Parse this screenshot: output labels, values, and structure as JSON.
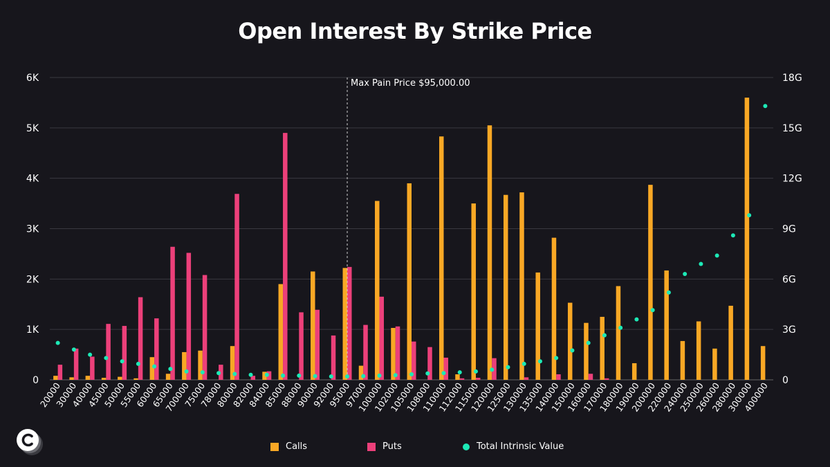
{
  "chart_data": {
    "type": "bar",
    "title": "Open Interest By Strike Price",
    "categories": [
      "20000",
      "30000",
      "40000",
      "45000",
      "50000",
      "55000",
      "60000",
      "65000",
      "700000",
      "75000",
      "78000",
      "80000",
      "82000",
      "84000",
      "85000",
      "88000",
      "90000",
      "92000",
      "95000",
      "97000",
      "100000",
      "102000",
      "105000",
      "108000",
      "110000",
      "112000",
      "115000",
      "120000",
      "125000",
      "130000",
      "135000",
      "140000",
      "150000",
      "160000",
      "170000",
      "180000",
      "190000",
      "200000",
      "220000",
      "240000",
      "250000",
      "260000",
      "280000",
      "300000",
      "400000"
    ],
    "series": [
      {
        "name": "Calls",
        "axis": "left",
        "color": "#f9a825",
        "values": [
          80,
          50,
          80,
          40,
          60,
          30,
          450,
          120,
          550,
          580,
          0,
          670,
          0,
          160,
          1900,
          0,
          2150,
          0,
          2220,
          280,
          3550,
          1030,
          3900,
          0,
          4830,
          110,
          3500,
          5050,
          3670,
          3720,
          2130,
          2820,
          1530,
          1130,
          1250,
          1860,
          330,
          3870,
          2170,
          770,
          1160,
          620,
          1470,
          5600,
          670
        ]
      },
      {
        "name": "Puts",
        "axis": "left",
        "color": "#ec407a",
        "values": [
          300,
          620,
          460,
          1110,
          1070,
          1640,
          1220,
          2640,
          2520,
          2080,
          300,
          3690,
          80,
          170,
          4900,
          1340,
          1390,
          880,
          2240,
          1090,
          1650,
          1060,
          760,
          650,
          440,
          30,
          40,
          430,
          0,
          50,
          0,
          110,
          0,
          120,
          30,
          0,
          0,
          0,
          0,
          0,
          0,
          0,
          0,
          0,
          0
        ]
      },
      {
        "name": "Total Intrinsic Value",
        "axis": "right",
        "color": "#1de9b6",
        "values": [
          2.2,
          1.8,
          1.5,
          1.3,
          1.1,
          0.95,
          0.8,
          0.65,
          0.5,
          0.45,
          0.4,
          0.35,
          0.3,
          0.3,
          0.25,
          0.25,
          0.22,
          0.2,
          0.2,
          0.22,
          0.25,
          0.28,
          0.33,
          0.38,
          0.4,
          0.45,
          0.5,
          0.6,
          0.75,
          0.95,
          1.1,
          1.3,
          1.75,
          2.2,
          2.65,
          3.1,
          3.6,
          4.15,
          5.2,
          6.3,
          6.9,
          7.4,
          8.6,
          9.8,
          16.3
        ]
      }
    ],
    "y_left": {
      "min": 0,
      "max": 6000,
      "ticks": [
        0,
        1000,
        2000,
        3000,
        4000,
        5000,
        6000
      ],
      "tick_labels": [
        "0",
        "1K",
        "2K",
        "3K",
        "4K",
        "5K",
        "6K"
      ]
    },
    "y_right": {
      "min": 0,
      "max": 18,
      "ticks": [
        0,
        3,
        6,
        9,
        12,
        15,
        18
      ],
      "tick_labels": [
        "0",
        "3G",
        "6G",
        "9G",
        "12G",
        "15G",
        "18G"
      ]
    },
    "annotation": {
      "label": "Max Pain Price $95,000.00",
      "category": "95000"
    },
    "legend": [
      {
        "label": "Calls",
        "color": "#f9a825",
        "shape": "square"
      },
      {
        "label": "Puts",
        "color": "#ec407a",
        "shape": "square"
      },
      {
        "label": "Total Intrinsic Value",
        "color": "#1de9b6",
        "shape": "circle"
      }
    ],
    "grid": true,
    "legend_position": "bottom"
  }
}
